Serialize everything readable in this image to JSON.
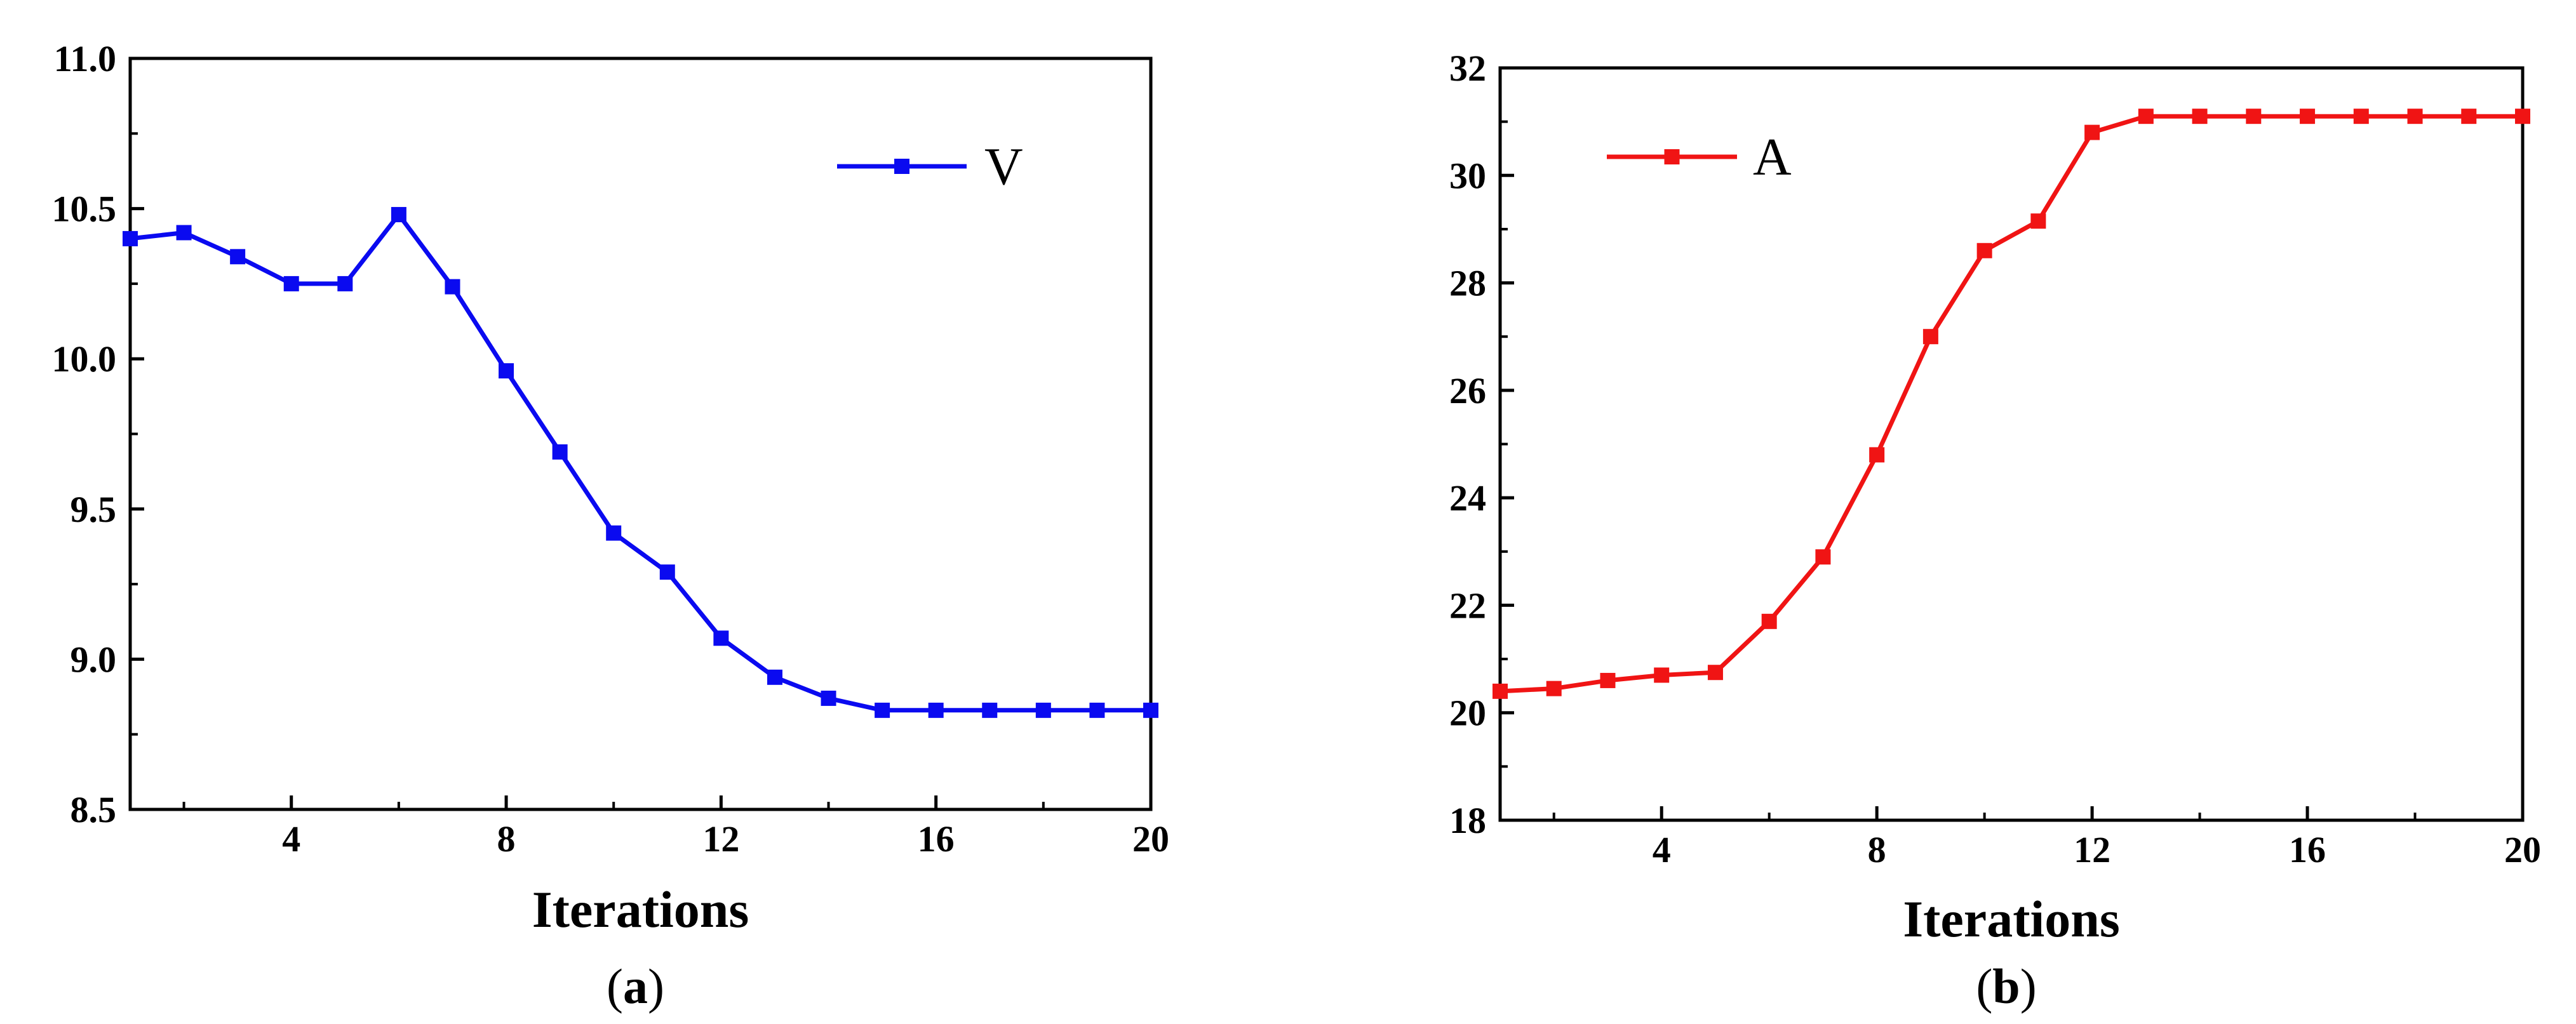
{
  "chart_data": [
    {
      "type": "line",
      "panel_label": "(a)",
      "panel_letter": "a",
      "title": "",
      "xlabel": "Iterations",
      "ylabel": "",
      "xlim": [
        1,
        20
      ],
      "ylim": [
        8.5,
        11.0
      ],
      "xticks": [
        4,
        8,
        12,
        16,
        20
      ],
      "xtick_labels": [
        "4",
        "8",
        "12",
        "16",
        "20"
      ],
      "yticks": [
        8.5,
        9.0,
        9.5,
        10.0,
        10.5,
        11.0
      ],
      "ytick_labels": [
        "8.5",
        "9.0",
        "9.5",
        "10.0",
        "10.5",
        "11.0"
      ],
      "grid": false,
      "legend_position": "top-right",
      "x": [
        1,
        2,
        3,
        4,
        5,
        6,
        7,
        8,
        9,
        10,
        11,
        12,
        13,
        14,
        15,
        16,
        17,
        18,
        19,
        20
      ],
      "series": [
        {
          "name": "V",
          "color": "#0a0af0",
          "marker": "square",
          "values": [
            10.4,
            10.42,
            10.34,
            10.25,
            10.25,
            10.48,
            10.24,
            9.96,
            9.69,
            9.42,
            9.29,
            9.07,
            8.94,
            8.87,
            8.83,
            8.83,
            8.83,
            8.83,
            8.83,
            8.83
          ]
        }
      ]
    },
    {
      "type": "line",
      "panel_label": "(b)",
      "panel_letter": "b",
      "title": "",
      "xlabel": "Iterations",
      "ylabel": "",
      "xlim": [
        1,
        20
      ],
      "ylim": [
        18,
        32
      ],
      "xticks": [
        4,
        8,
        12,
        16,
        20
      ],
      "xtick_labels": [
        "4",
        "8",
        "12",
        "16",
        "20"
      ],
      "yticks": [
        18,
        20,
        22,
        24,
        26,
        28,
        30,
        32
      ],
      "ytick_labels": [
        "18",
        "20",
        "22",
        "24",
        "26",
        "28",
        "30",
        "32"
      ],
      "grid": false,
      "legend_position": "top-left",
      "x": [
        1,
        2,
        3,
        4,
        5,
        6,
        7,
        8,
        9,
        10,
        11,
        12,
        13,
        14,
        15,
        16,
        17,
        18,
        19,
        20
      ],
      "series": [
        {
          "name": "A",
          "color": "#f01414",
          "marker": "square",
          "values": [
            20.4,
            20.45,
            20.6,
            20.7,
            20.75,
            21.7,
            22.9,
            24.8,
            27.0,
            28.6,
            29.15,
            30.8,
            31.1,
            31.1,
            31.1,
            31.1,
            31.1,
            31.1,
            31.1,
            31.1
          ]
        }
      ]
    }
  ]
}
